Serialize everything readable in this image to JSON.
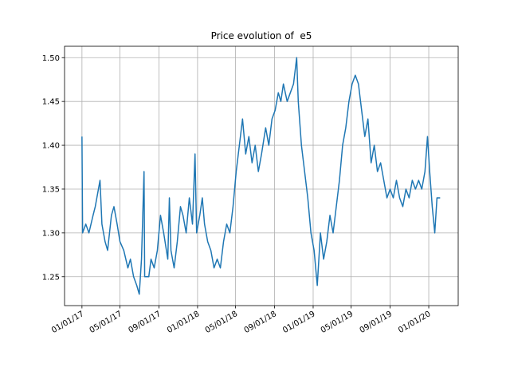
{
  "chart_data": {
    "type": "line",
    "title": "Price evolution of  e5",
    "x": [
      "2017-01-01",
      "2017-01-03",
      "2017-01-13",
      "2017-01-23",
      "2017-02-05",
      "2017-02-12",
      "2017-02-22",
      "2017-02-27",
      "2017-03-05",
      "2017-03-15",
      "2017-03-23",
      "2017-04-04",
      "2017-04-12",
      "2017-04-22",
      "2017-05-01",
      "2017-05-13",
      "2017-05-26",
      "2017-06-03",
      "2017-06-13",
      "2017-06-23",
      "2017-07-01",
      "2017-07-08",
      "2017-07-16",
      "2017-07-18",
      "2017-07-31",
      "2017-08-07",
      "2017-08-17",
      "2017-08-27",
      "2017-09-06",
      "2017-09-16",
      "2017-09-29",
      "2017-10-04",
      "2017-10-09",
      "2017-10-19",
      "2017-10-29",
      "2017-11-08",
      "2017-11-16",
      "2017-11-26",
      "2017-12-06",
      "2017-12-16",
      "2017-12-24",
      "2017-12-29",
      "2018-01-08",
      "2018-01-16",
      "2018-01-23",
      "2018-02-02",
      "2018-02-12",
      "2018-02-22",
      "2018-03-04",
      "2018-03-14",
      "2018-03-24",
      "2018-04-03",
      "2018-04-13",
      "2018-04-23",
      "2018-05-03",
      "2018-05-13",
      "2018-05-23",
      "2018-06-02",
      "2018-06-12",
      "2018-06-22",
      "2018-07-02",
      "2018-07-12",
      "2018-07-22",
      "2018-08-04",
      "2018-08-14",
      "2018-08-24",
      "2018-09-03",
      "2018-09-13",
      "2018-09-21",
      "2018-09-29",
      "2018-10-11",
      "2018-10-21",
      "2018-10-31",
      "2018-11-10",
      "2018-11-15",
      "2018-11-25",
      "2018-12-05",
      "2018-12-15",
      "2018-12-25",
      "2019-01-04",
      "2019-01-14",
      "2019-01-24",
      "2019-02-03",
      "2019-02-13",
      "2019-02-23",
      "2019-03-05",
      "2019-03-15",
      "2019-03-25",
      "2019-04-04",
      "2019-04-14",
      "2019-04-24",
      "2019-05-04",
      "2019-05-14",
      "2019-05-24",
      "2019-06-03",
      "2019-06-13",
      "2019-06-23",
      "2019-07-03",
      "2019-07-13",
      "2019-07-23",
      "2019-08-02",
      "2019-08-12",
      "2019-08-22",
      "2019-09-01",
      "2019-09-11",
      "2019-09-21",
      "2019-10-01",
      "2019-10-11",
      "2019-10-21",
      "2019-10-31",
      "2019-11-10",
      "2019-11-20",
      "2019-11-30",
      "2019-12-10",
      "2019-12-20",
      "2019-12-28",
      "2020-01-04",
      "2020-01-12",
      "2020-01-20",
      "2020-01-27",
      "2020-02-06"
    ],
    "series": [
      {
        "name": "e5",
        "color": "#1f77b4",
        "values": [
          1.41,
          1.3,
          1.31,
          1.3,
          1.32,
          1.33,
          1.35,
          1.36,
          1.31,
          1.29,
          1.28,
          1.32,
          1.33,
          1.31,
          1.29,
          1.28,
          1.26,
          1.27,
          1.25,
          1.24,
          1.23,
          1.27,
          1.37,
          1.25,
          1.25,
          1.27,
          1.26,
          1.28,
          1.32,
          1.3,
          1.27,
          1.34,
          1.28,
          1.26,
          1.29,
          1.33,
          1.32,
          1.3,
          1.34,
          1.31,
          1.39,
          1.3,
          1.32,
          1.34,
          1.31,
          1.29,
          1.28,
          1.26,
          1.27,
          1.26,
          1.29,
          1.31,
          1.3,
          1.33,
          1.37,
          1.4,
          1.43,
          1.39,
          1.41,
          1.38,
          1.4,
          1.37,
          1.39,
          1.42,
          1.4,
          1.43,
          1.44,
          1.46,
          1.45,
          1.47,
          1.45,
          1.46,
          1.47,
          1.5,
          1.45,
          1.4,
          1.37,
          1.34,
          1.3,
          1.28,
          1.24,
          1.3,
          1.27,
          1.29,
          1.32,
          1.3,
          1.33,
          1.36,
          1.4,
          1.42,
          1.45,
          1.47,
          1.48,
          1.47,
          1.44,
          1.41,
          1.43,
          1.38,
          1.4,
          1.37,
          1.38,
          1.36,
          1.34,
          1.35,
          1.34,
          1.36,
          1.34,
          1.33,
          1.35,
          1.34,
          1.36,
          1.35,
          1.36,
          1.35,
          1.37,
          1.41,
          1.37,
          1.33,
          1.3,
          1.34,
          1.34
        ]
      }
    ],
    "xlim": [
      "2016-11-07",
      "2020-04-03"
    ],
    "xticks": [
      {
        "value": "2017-01-01",
        "label": "01/01/17"
      },
      {
        "value": "2017-05-01",
        "label": "05/01/17"
      },
      {
        "value": "2017-09-01",
        "label": "09/01/17"
      },
      {
        "value": "2018-01-01",
        "label": "01/01/18"
      },
      {
        "value": "2018-05-01",
        "label": "05/01/18"
      },
      {
        "value": "2018-09-01",
        "label": "09/01/18"
      },
      {
        "value": "2019-01-01",
        "label": "01/01/19"
      },
      {
        "value": "2019-05-01",
        "label": "05/01/19"
      },
      {
        "value": "2019-09-01",
        "label": "09/01/19"
      },
      {
        "value": "2020-01-01",
        "label": "01/01/20"
      }
    ],
    "ylim": [
      1.217,
      1.513
    ],
    "yticks": [
      {
        "value": 1.25,
        "label": "1.25"
      },
      {
        "value": 1.3,
        "label": "1.30"
      },
      {
        "value": 1.35,
        "label": "1.35"
      },
      {
        "value": 1.4,
        "label": "1.40"
      },
      {
        "value": 1.45,
        "label": "1.45"
      },
      {
        "value": 1.5,
        "label": "1.50"
      }
    ],
    "grid": true
  }
}
